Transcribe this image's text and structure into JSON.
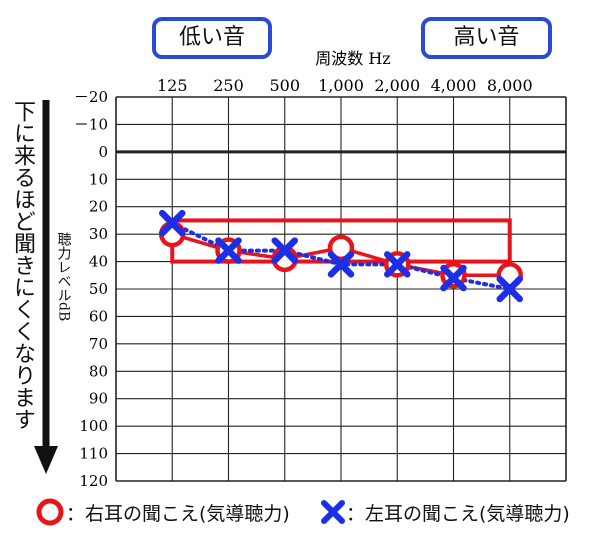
{
  "labels": {
    "low": "低い音",
    "high": "高い音",
    "direction": "下に来るほど聞きにくくなります",
    "yaxis_line1": "聴力レベル",
    "yaxis_line2": "dB"
  },
  "legend": {
    "right_label": "：右耳の聞こえ(気導聴力)",
    "left_label": "：左耳の聞こえ(気導聴力)"
  },
  "colors": {
    "red": "#e8141c",
    "blue": "#1c2fe6",
    "tag_border": "#2b4bd6"
  },
  "chart_data": {
    "type": "line",
    "xlabel": "周波数 Hz",
    "categories": [
      "125",
      "250",
      "500",
      "1,000",
      "2,000",
      "4,000",
      "8,000"
    ],
    "yticks": [
      "－20",
      "－10",
      "0",
      "10",
      "20",
      "30",
      "40",
      "50",
      "60",
      "70",
      "80",
      "90",
      "100",
      "110",
      "120"
    ],
    "ylim": [
      -20,
      120
    ],
    "y_inverted": true,
    "grid": true,
    "series": [
      {
        "values": [
          30,
          36,
          39,
          35,
          41,
          45,
          45
        ],
        "color": "#e8141c",
        "marker": "circle",
        "line": "solid"
      },
      {
        "values": [
          26,
          36,
          36,
          41,
          41,
          46,
          50
        ],
        "color": "#1c2fe6",
        "marker": "cross",
        "line": "dotted"
      }
    ],
    "highlight_box": {
      "x_from": "125",
      "x_to": "8,000",
      "y_from": 25,
      "y_to": 40,
      "color": "#e8141c"
    }
  }
}
